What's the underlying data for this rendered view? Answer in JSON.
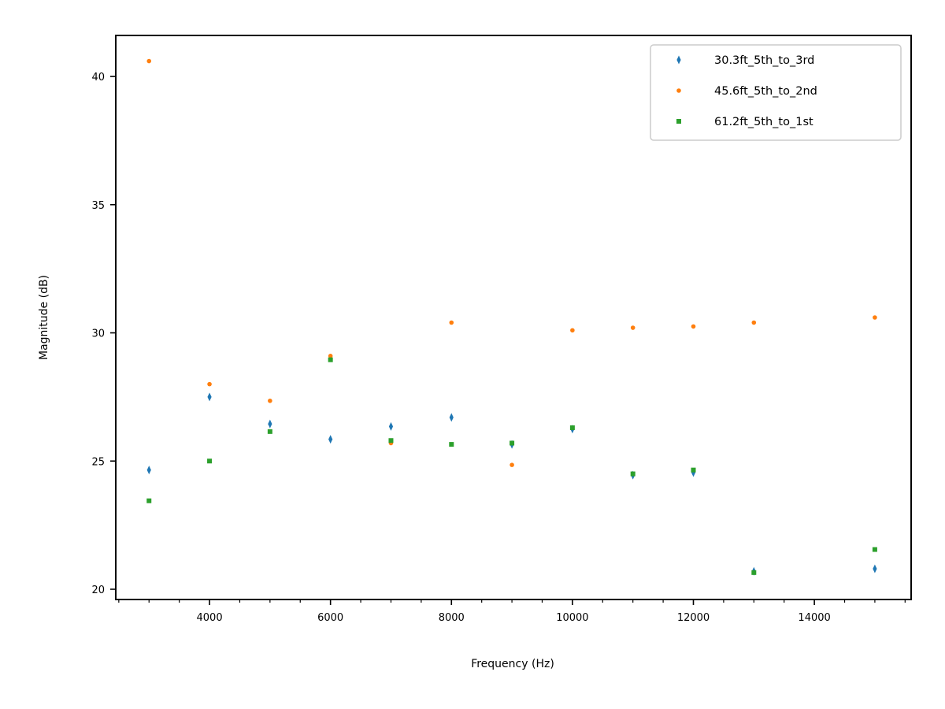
{
  "chart_data": {
    "type": "scatter",
    "title": "",
    "xlabel": "Frequency (Hz)",
    "ylabel": "Magnitude (dB)",
    "xlim": [
      2450,
      15600
    ],
    "ylim": [
      19.6,
      41.6
    ],
    "xticks": [
      4000,
      6000,
      8000,
      10000,
      12000,
      14000
    ],
    "xtick_labels": [
      "4000",
      "6000",
      "8000",
      "10000",
      "12000",
      "14000"
    ],
    "x_minor_ticks_step": 500,
    "yticks": [
      20,
      25,
      30,
      35,
      40
    ],
    "ytick_labels": [
      "20",
      "25",
      "30",
      "35",
      "40"
    ],
    "grid": false,
    "legend_position": "top-right",
    "series": [
      {
        "name": "30.3ft_5th_to_3rd",
        "color": "#1f77b4",
        "marker": "thin-diamond",
        "x": [
          3000,
          4000,
          5000,
          6000,
          7000,
          8000,
          9000,
          10000,
          11000,
          12000,
          13000,
          15000
        ],
        "y": [
          24.65,
          27.5,
          26.45,
          25.85,
          26.35,
          26.7,
          25.65,
          26.25,
          24.45,
          24.55,
          20.7,
          20.8
        ]
      },
      {
        "name": "45.6ft_5th_to_2nd",
        "color": "#ff7f0e",
        "marker": "circle",
        "x": [
          3000,
          4000,
          5000,
          6000,
          7000,
          8000,
          9000,
          10000,
          11000,
          12000,
          13000,
          15000
        ],
        "y": [
          40.6,
          28.0,
          27.35,
          29.1,
          25.7,
          30.4,
          24.85,
          30.1,
          30.2,
          30.25,
          30.4,
          30.6
        ]
      },
      {
        "name": "61.2ft_5th_to_1st",
        "color": "#2ca02c",
        "marker": "square",
        "x": [
          3000,
          4000,
          5000,
          6000,
          7000,
          8000,
          9000,
          10000,
          11000,
          12000,
          13000,
          15000
        ],
        "y": [
          23.45,
          25.0,
          26.15,
          28.95,
          25.8,
          25.65,
          25.7,
          26.3,
          24.5,
          24.65,
          20.65,
          21.55
        ]
      }
    ]
  }
}
